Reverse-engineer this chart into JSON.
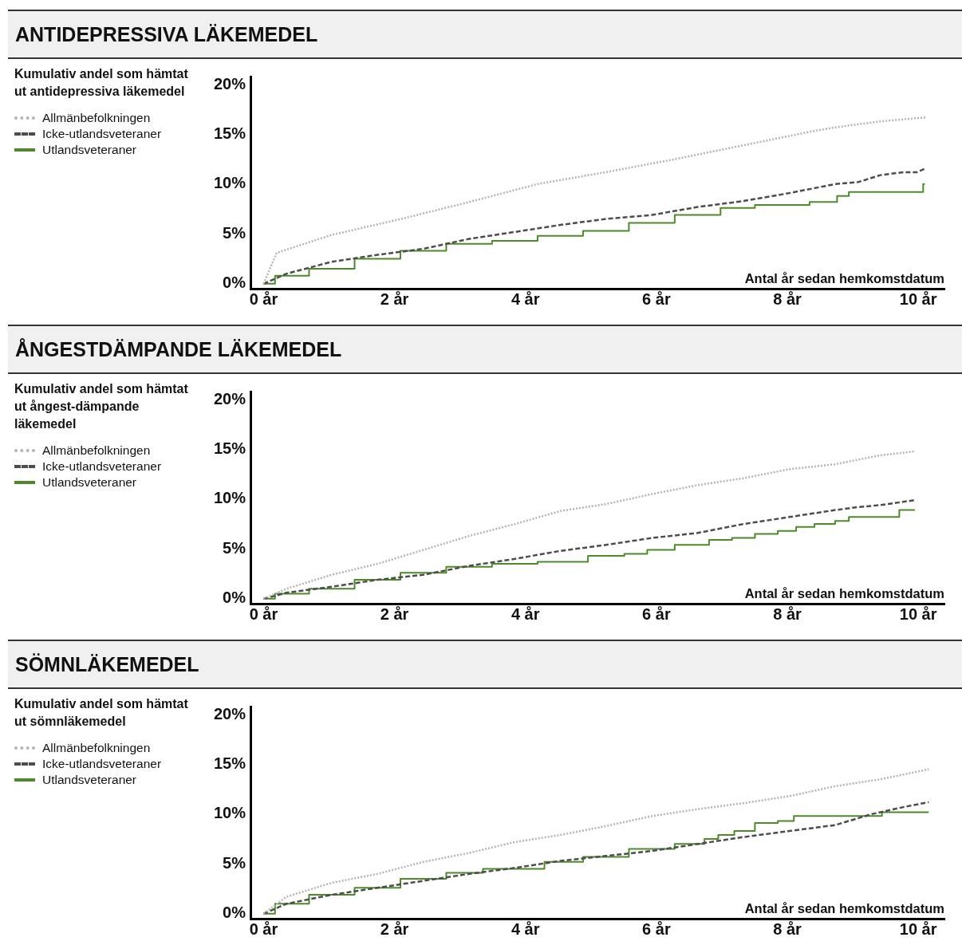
{
  "chart_data": [
    {
      "type": "line",
      "title": "ANTIDEPRESSIVA LÄKEMEDEL",
      "ylabel": "Kumulativ andel som hämtat ut antidepressiva läkemedel",
      "xlabel": "Antal år sedan hemkomstdatum",
      "legend": "left",
      "grid": false,
      "marker": "none",
      "xlim": [
        -0.2,
        10.4
      ],
      "xticks": [
        {
          "value": 0,
          "label": "0 år"
        },
        {
          "value": 2,
          "label": "2 år"
        },
        {
          "value": 4,
          "label": "4 år"
        },
        {
          "value": 6,
          "label": "6 år"
        },
        {
          "value": 8,
          "label": "8 år"
        },
        {
          "value": 10,
          "label": "10 år"
        }
      ],
      "ylim": [
        -0.5,
        20.8
      ],
      "yticks": [
        {
          "value": 0,
          "label": "0%"
        },
        {
          "value": 5,
          "label": "5%"
        },
        {
          "value": 10,
          "label": "10%"
        },
        {
          "value": 15,
          "label": "15%"
        },
        {
          "value": 20,
          "label": "20%"
        }
      ],
      "series": [
        {
          "name": "Allmänbefolkningen",
          "color": "#b4b4b4",
          "line_style": "dotted",
          "x": [
            0,
            0.2,
            1.04,
            2.1,
            3.14,
            4.18,
            5.23,
            6.28,
            7.33,
            8.38,
            8.73,
            9.42,
            10.12
          ],
          "values": [
            0,
            3.1,
            4.9,
            6.5,
            8.2,
            10.0,
            11.2,
            12.5,
            13.9,
            15.3,
            15.7,
            16.3,
            16.7
          ]
        },
        {
          "name": "Icke-utlandsveteraner",
          "color": "#4d4d4d",
          "line_style": "dashed",
          "x": [
            0,
            0.35,
            1.04,
            1.74,
            2.44,
            3.14,
            3.84,
            4.53,
            5.23,
            5.93,
            6.63,
            7.33,
            8.03,
            8.73,
            9.08,
            9.42,
            9.77,
            9.98,
            10.12
          ],
          "values": [
            0,
            1.0,
            2.2,
            2.9,
            3.5,
            4.5,
            5.2,
            5.9,
            6.5,
            6.9,
            7.7,
            8.3,
            9.1,
            10.0,
            10.2,
            10.9,
            11.2,
            11.2,
            11.6
          ]
        },
        {
          "name": "Utlandsveteraner",
          "color": "#4e8a2c",
          "type": "step",
          "line_style": "solid",
          "x": [
            0,
            0.35,
            1.04,
            1.74,
            2.44,
            3.14,
            3.84,
            4.53,
            5.23,
            5.93,
            6.63,
            7.33,
            7.68,
            8.03,
            8.65,
            8.87,
            9.01,
            10.05,
            10.1
          ],
          "values": [
            0,
            0.8,
            1.5,
            2.5,
            3.3,
            4.0,
            4.3,
            4.8,
            5.3,
            6.1,
            6.9,
            7.6,
            7.9,
            7.9,
            8.2,
            8.8,
            9.2,
            9.2,
            10.0
          ]
        }
      ]
    },
    {
      "type": "line",
      "title": "ÅNGESTDÄMPANDE LÄKEMEDEL",
      "ylabel": "Kumulativ andel som hämtat ut ångest-dämpande läkemedel",
      "xlabel": "Antal år sedan hemkomstdatum",
      "legend": "left",
      "grid": false,
      "marker": "none",
      "xlim": [
        -0.2,
        10.4
      ],
      "xticks": [
        {
          "value": 0,
          "label": "0 år"
        },
        {
          "value": 2,
          "label": "2 år"
        },
        {
          "value": 4,
          "label": "4 år"
        },
        {
          "value": 6,
          "label": "6 år"
        },
        {
          "value": 8,
          "label": "8 år"
        },
        {
          "value": 10,
          "label": "10 år"
        }
      ],
      "ylim": [
        -0.5,
        20.8
      ],
      "yticks": [
        {
          "value": 0,
          "label": "0%"
        },
        {
          "value": 5,
          "label": "5%"
        },
        {
          "value": 10,
          "label": "10%"
        },
        {
          "value": 15,
          "label": "15%"
        },
        {
          "value": 20,
          "label": "20%"
        }
      ],
      "series": [
        {
          "name": "Allmänbefolkningen",
          "color": "#b4b4b4",
          "line_style": "dotted",
          "x": [
            0,
            0.35,
            1.04,
            1.74,
            2.44,
            3.14,
            3.84,
            4.53,
            5.23,
            5.93,
            6.63,
            7.33,
            8.03,
            8.73,
            9.42,
            9.95
          ],
          "values": [
            0,
            1.0,
            2.4,
            3.5,
            4.9,
            6.3,
            7.5,
            8.8,
            9.5,
            10.5,
            11.4,
            12.1,
            13.0,
            13.5,
            14.4,
            14.8
          ]
        },
        {
          "name": "Icke-utlandsveteraner",
          "color": "#4d4d4d",
          "line_style": "dashed",
          "x": [
            0,
            0.35,
            1.04,
            1.74,
            2.44,
            3.14,
            3.84,
            4.53,
            5.23,
            5.93,
            6.63,
            7.33,
            8.03,
            8.73,
            9.08,
            9.42,
            9.95
          ],
          "values": [
            0,
            0.6,
            1.2,
            1.9,
            2.4,
            3.3,
            4.0,
            4.8,
            5.4,
            6.1,
            6.6,
            7.5,
            8.2,
            8.9,
            9.2,
            9.4,
            9.9
          ]
        },
        {
          "name": "Utlandsveteraner",
          "color": "#4e8a2c",
          "type": "step",
          "line_style": "solid",
          "x": [
            0,
            0.35,
            1.04,
            1.74,
            2.44,
            3.14,
            3.84,
            4.53,
            4.68,
            5.23,
            5.79,
            5.93,
            6.63,
            6.98,
            7.33,
            7.68,
            8.03,
            8.24,
            8.59,
            8.87,
            9.01,
            9.7,
            9.72,
            9.95
          ],
          "values": [
            0,
            0.5,
            1.0,
            1.9,
            2.6,
            3.2,
            3.5,
            3.7,
            3.7,
            4.3,
            4.5,
            4.9,
            5.4,
            5.9,
            6.1,
            6.5,
            6.8,
            7.2,
            7.5,
            7.8,
            8.2,
            8.2,
            8.9,
            8.9
          ]
        }
      ]
    },
    {
      "type": "line",
      "title": "SÖMNLÄKEMEDEL",
      "ylabel": "Kumulativ andel som hämtat ut sömnläkemedel",
      "xlabel": "Antal år sedan hemkomstdatum",
      "legend": "left",
      "grid": false,
      "marker": "none",
      "xlim": [
        -0.2,
        10.4
      ],
      "xticks": [
        {
          "value": 0,
          "label": "0 år"
        },
        {
          "value": 2,
          "label": "2 år"
        },
        {
          "value": 4,
          "label": "4 år"
        },
        {
          "value": 6,
          "label": "6 år"
        },
        {
          "value": 8,
          "label": "8 år"
        },
        {
          "value": 10,
          "label": "10 år"
        }
      ],
      "ylim": [
        -0.5,
        20.8
      ],
      "yticks": [
        {
          "value": 0,
          "label": "0%"
        },
        {
          "value": 5,
          "label": "5%"
        },
        {
          "value": 10,
          "label": "10%"
        },
        {
          "value": 15,
          "label": "15%"
        },
        {
          "value": 20,
          "label": "20%"
        }
      ],
      "series": [
        {
          "name": "Allmänbefolkningen",
          "color": "#b4b4b4",
          "line_style": "dotted",
          "x": [
            0,
            0.35,
            1.04,
            1.74,
            2.44,
            3.14,
            3.84,
            4.53,
            5.23,
            5.93,
            6.63,
            7.33,
            8.03,
            8.73,
            9.42,
            10.16
          ],
          "values": [
            0,
            1.7,
            3.1,
            4.0,
            5.2,
            6.1,
            7.2,
            7.9,
            8.8,
            9.8,
            10.5,
            11.1,
            11.8,
            12.8,
            13.5,
            14.5
          ]
        },
        {
          "name": "Icke-utlandsveteraner",
          "color": "#4d4d4d",
          "line_style": "dashed",
          "x": [
            0,
            0.35,
            1.04,
            1.74,
            2.44,
            3.14,
            3.84,
            4.53,
            5.23,
            5.93,
            6.63,
            7.33,
            8.03,
            8.73,
            9.29,
            9.77,
            10.16
          ],
          "values": [
            0,
            1.0,
            1.9,
            2.6,
            3.3,
            4.0,
            4.6,
            5.3,
            5.8,
            6.3,
            7.0,
            7.7,
            8.3,
            8.9,
            10.0,
            10.7,
            11.2
          ]
        },
        {
          "name": "Utlandsveteraner",
          "color": "#4e8a2c",
          "type": "step",
          "line_style": "solid",
          "x": [
            0,
            0.35,
            1.04,
            1.74,
            2.44,
            3.14,
            3.56,
            4.05,
            4.53,
            5.23,
            5.93,
            6.63,
            6.84,
            7.05,
            7.33,
            7.68,
            8.03,
            8.17,
            9.42,
            9.47,
            10.16
          ],
          "values": [
            0,
            1.0,
            1.9,
            2.6,
            3.5,
            4.1,
            4.5,
            4.5,
            5.2,
            5.7,
            6.5,
            7.0,
            7.5,
            7.9,
            8.3,
            9.1,
            9.3,
            9.8,
            9.8,
            10.2,
            10.2
          ]
        }
      ]
    }
  ]
}
